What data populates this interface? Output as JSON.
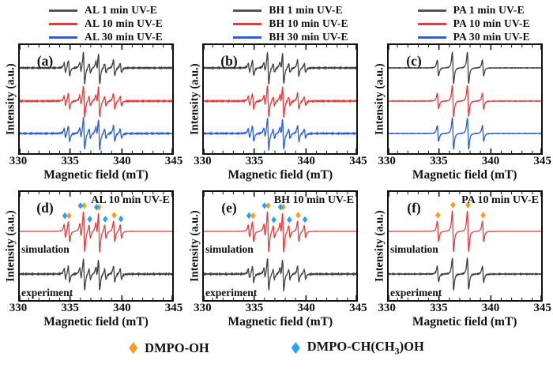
{
  "figure": {
    "top_legends": [
      {
        "entries": [
          {
            "label": "AL 1 min UV-E",
            "color": "#545557"
          },
          {
            "label": "AL 10 min UV-E",
            "color": "#e73b3c"
          },
          {
            "label": "AL 30 min UV-E",
            "color": "#2a5fd9"
          }
        ]
      },
      {
        "entries": [
          {
            "label": "BH 1 min UV-E",
            "color": "#545557"
          },
          {
            "label": "BH 10 min UV-E",
            "color": "#e73b3c"
          },
          {
            "label": "BH 30 min UV-E",
            "color": "#2a5fd9"
          }
        ]
      },
      {
        "entries": [
          {
            "label": "PA 1 min UV-E",
            "color": "#545557"
          },
          {
            "label": "PA 10 min UV-E",
            "color": "#e73b3c"
          },
          {
            "label": "PA 30 min UV-E",
            "color": "#2a5fd9"
          }
        ]
      }
    ],
    "bottom_legend": [
      {
        "label": "DMPO-OH",
        "marker": "diamond",
        "color": "#f59d24"
      },
      {
        "label": "DMPO-CH(CH3)OH",
        "parts": [
          "DMPO-CH(CH",
          "3",
          ")OH"
        ],
        "marker": "diamond",
        "color": "#2aa2f2"
      }
    ]
  },
  "axes": {
    "xlabel": "Magnetic field (mT)",
    "ylabel": "Intensity (a.u.)",
    "xmin": 330,
    "xmax": 345,
    "ticks": [
      330,
      335,
      340,
      345
    ],
    "minor_tick_step": 1
  },
  "epr_lines": {
    "hydroxyl": {
      "adduct": "DMPO-OH",
      "centers": [
        334.9,
        336.35,
        337.8,
        339.25
      ],
      "rel_amps": [
        1,
        2,
        2,
        1
      ],
      "linewidth_mT": 0.11
    },
    "alkyl": {
      "adduct": "DMPO-CH(CH3)OH",
      "centers": [
        334.5,
        336.0,
        336.9,
        337.55,
        338.4,
        339.9
      ],
      "rel_amps": [
        1,
        1,
        1,
        1,
        1,
        1
      ],
      "linewidth_mT": 0.11
    }
  },
  "chart_data": [
    {
      "id": "a",
      "type": "line",
      "panel_label": "(a)",
      "title": "",
      "traces": [
        {
          "name": "AL 1 min UV-E",
          "color": "#3f4041",
          "adducts": {
            "hydroxyl": 1.0,
            "alkyl": 0.3
          },
          "noise": 0.07,
          "seed": 1
        },
        {
          "name": "AL 10 min UV-E",
          "color": "#e73b3c",
          "adducts": {
            "hydroxyl": 1.0,
            "alkyl": 0.3
          },
          "noise": 0.07,
          "seed": 2
        },
        {
          "name": "AL 30 min UV-E",
          "color": "#2a5fd9",
          "adducts": {
            "hydroxyl": 1.0,
            "alkyl": 0.3
          },
          "noise": 0.07,
          "seed": 3
        }
      ]
    },
    {
      "id": "b",
      "type": "line",
      "panel_label": "(b)",
      "title": "",
      "traces": [
        {
          "name": "BH 1 min UV-E",
          "color": "#3f4041",
          "adducts": {
            "hydroxyl": 1.0,
            "alkyl": 0.28
          },
          "noise": 0.07,
          "seed": 4
        },
        {
          "name": "BH 10 min UV-E",
          "color": "#e73b3c",
          "adducts": {
            "hydroxyl": 1.0,
            "alkyl": 0.28
          },
          "noise": 0.07,
          "seed": 5
        },
        {
          "name": "BH 30 min UV-E",
          "color": "#2a5fd9",
          "adducts": {
            "hydroxyl": 1.0,
            "alkyl": 0.28
          },
          "noise": 0.07,
          "seed": 6
        }
      ]
    },
    {
      "id": "c",
      "type": "line",
      "panel_label": "(c)",
      "title": "",
      "traces": [
        {
          "name": "PA 1 min UV-E",
          "color": "#3f4041",
          "adducts": {
            "hydroxyl": 1.0
          },
          "noise": 0.025,
          "seed": 7
        },
        {
          "name": "PA 10 min UV-E",
          "color": "#e73b3c",
          "adducts": {
            "hydroxyl": 1.0
          },
          "noise": 0.025,
          "seed": 8
        },
        {
          "name": "PA 30 min UV-E",
          "color": "#2a5fd9",
          "adducts": {
            "hydroxyl": 1.0
          },
          "noise": 0.025,
          "seed": 9
        }
      ]
    },
    {
      "id": "d",
      "type": "line",
      "panel_label": "(d)",
      "title": "AL 10 min UV-E",
      "trace_labels_visible": true,
      "traces": [
        {
          "name": "simulation",
          "color": "#e73b3c",
          "adducts": {
            "hydroxyl": 1.0,
            "alkyl": 0.33
          },
          "noise": 0,
          "seed": 0
        },
        {
          "name": "experiment",
          "color": "#3f4041",
          "adducts": {
            "hydroxyl": 1.0,
            "alkyl": 0.33
          },
          "noise": 0.075,
          "seed": 10
        }
      ],
      "markers": [
        {
          "adduct_key": "hydroxyl",
          "label": "DMPO-OH",
          "color": "#f59d24"
        },
        {
          "adduct_key": "alkyl",
          "label": "DMPO-CH(CH3)OH",
          "color": "#2aa2f2"
        }
      ]
    },
    {
      "id": "e",
      "type": "line",
      "panel_label": "(e)",
      "title": "BH 10 min UV-E",
      "trace_labels_visible": true,
      "traces": [
        {
          "name": "simulation",
          "color": "#e73b3c",
          "adducts": {
            "hydroxyl": 1.0,
            "alkyl": 0.3
          },
          "noise": 0,
          "seed": 0
        },
        {
          "name": "experiment",
          "color": "#3f4041",
          "adducts": {
            "hydroxyl": 1.0,
            "alkyl": 0.3
          },
          "noise": 0.075,
          "seed": 11
        }
      ],
      "markers": [
        {
          "adduct_key": "hydroxyl",
          "label": "DMPO-OH",
          "color": "#f59d24"
        },
        {
          "adduct_key": "alkyl",
          "label": "DMPO-CH(CH3)OH",
          "color": "#2aa2f2"
        }
      ]
    },
    {
      "id": "f",
      "type": "line",
      "panel_label": "(f)",
      "title": "PA 10 min UV-E",
      "trace_labels_visible": true,
      "traces": [
        {
          "name": "simulation",
          "color": "#e73b3c",
          "adducts": {
            "hydroxyl": 1.0
          },
          "noise": 0,
          "seed": 0
        },
        {
          "name": "experiment",
          "color": "#3f4041",
          "adducts": {
            "hydroxyl": 1.0
          },
          "noise": 0.055,
          "seed": 12
        }
      ],
      "markers": [
        {
          "adduct_key": "hydroxyl",
          "label": "DMPO-OH",
          "color": "#f59d24"
        }
      ]
    }
  ]
}
